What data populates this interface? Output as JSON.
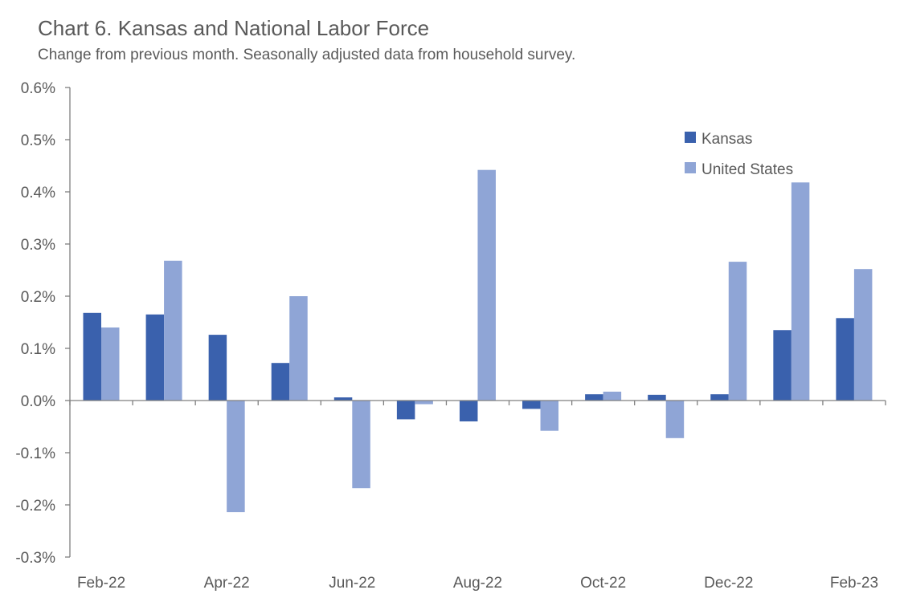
{
  "chart_data": {
    "type": "bar",
    "title": "Chart 6. Kansas and National Labor Force",
    "subtitle": "Change from previous month. Seasonally adjusted data from household survey.",
    "categories": [
      "Feb-22",
      "Mar-22",
      "Apr-22",
      "May-22",
      "Jun-22",
      "Jul-22",
      "Aug-22",
      "Sep-22",
      "Oct-22",
      "Nov-22",
      "Dec-22",
      "Jan-23",
      "Feb-23"
    ],
    "x_tick_labels": [
      "Feb-22",
      "",
      "Apr-22",
      "",
      "Jun-22",
      "",
      "Aug-22",
      "",
      "Oct-22",
      "",
      "Dec-22",
      "",
      "Feb-23"
    ],
    "series": [
      {
        "name": "Kansas",
        "color": "#3a61ad",
        "values": [
          0.168,
          0.165,
          0.126,
          0.072,
          0.006,
          -0.036,
          -0.04,
          -0.016,
          0.012,
          0.011,
          0.012,
          0.135,
          0.158
        ]
      },
      {
        "name": "United States",
        "color": "#8fa5d6",
        "values": [
          0.14,
          0.268,
          -0.214,
          0.2,
          -0.168,
          -0.007,
          0.442,
          -0.058,
          0.017,
          -0.072,
          0.266,
          0.418,
          0.252
        ]
      }
    ],
    "ylim": [
      -0.3,
      0.6
    ],
    "y_ticks": [
      0.6,
      0.5,
      0.4,
      0.3,
      0.2,
      0.1,
      0.0,
      -0.1,
      -0.2,
      -0.3
    ],
    "y_tick_labels": [
      "0.6%",
      "0.5%",
      "0.4%",
      "0.3%",
      "0.2%",
      "0.1%",
      "0.0%",
      "-0.1%",
      "-0.2%",
      "-0.3%"
    ],
    "legend_position": "top-right",
    "grid": false
  }
}
